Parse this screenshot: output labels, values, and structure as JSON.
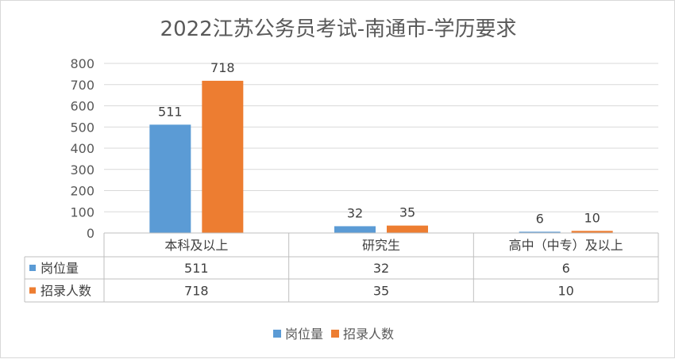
{
  "chart_data": {
    "type": "bar",
    "title": "2022江苏公务员考试-南通市-学历要求",
    "categories": [
      "本科及以上",
      "研究生",
      "高中（中专）及以上"
    ],
    "series": [
      {
        "name": "岗位量",
        "values": [
          511,
          32,
          6
        ],
        "color": "#5b9bd5"
      },
      {
        "name": "招录人数",
        "values": [
          718,
          35,
          10
        ],
        "color": "#ed7d31"
      }
    ],
    "yticks": [
      "0",
      "100",
      "200",
      "300",
      "400",
      "500",
      "600",
      "700",
      "800"
    ],
    "ylim": [
      0,
      800
    ],
    "grid": true,
    "data_table": true,
    "legend_position": "bottom"
  }
}
